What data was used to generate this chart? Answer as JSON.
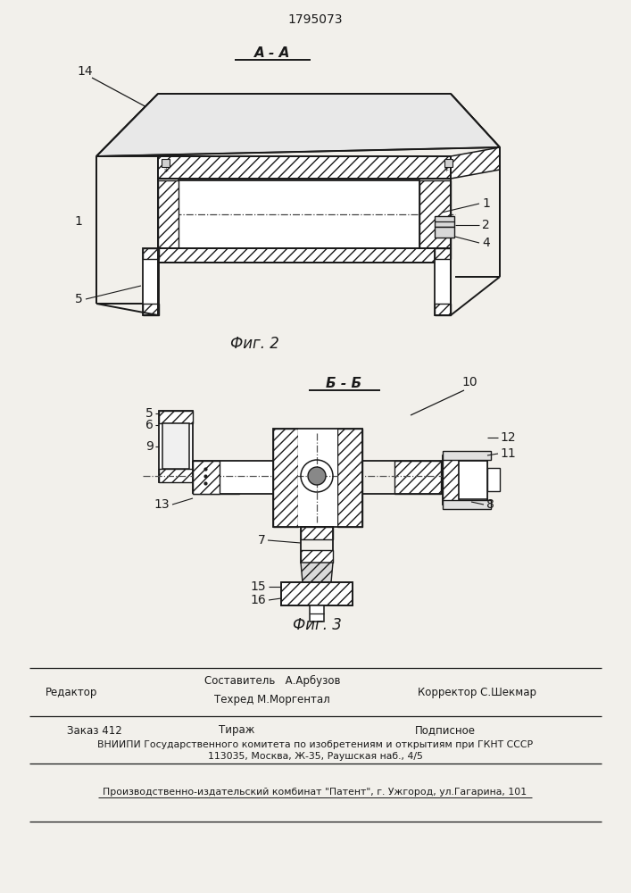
{
  "patent_number": "1795073",
  "fig2_label": "Фиг. 2",
  "fig3_label": "Фиг. 3",
  "section_aa": "А - А",
  "section_bb": "Б - Б",
  "background_color": "#f2f0eb",
  "line_color": "#1a1a1a",
  "footer": {
    "redaktor": "Редактор",
    "sostavitel": "Составитель   А.Арбузов",
    "tehred": "Техред М.Моргентал",
    "korrektor": "Корректор С.Шекмар",
    "zakaz": "Заказ 412",
    "tirazh": "Тираж",
    "podpisnoe": "Подписное",
    "vniipи": "ВНИИПИ Государственного комитета по изобретениям и открытиям при ГКНТ СССР",
    "address": "113035, Москва, Ж-35, Раушская наб., 4/5",
    "kombinat": "Производственно-издательский комбинат \"Патент\", г. Ужгород, ул.Гагарина, 101"
  }
}
